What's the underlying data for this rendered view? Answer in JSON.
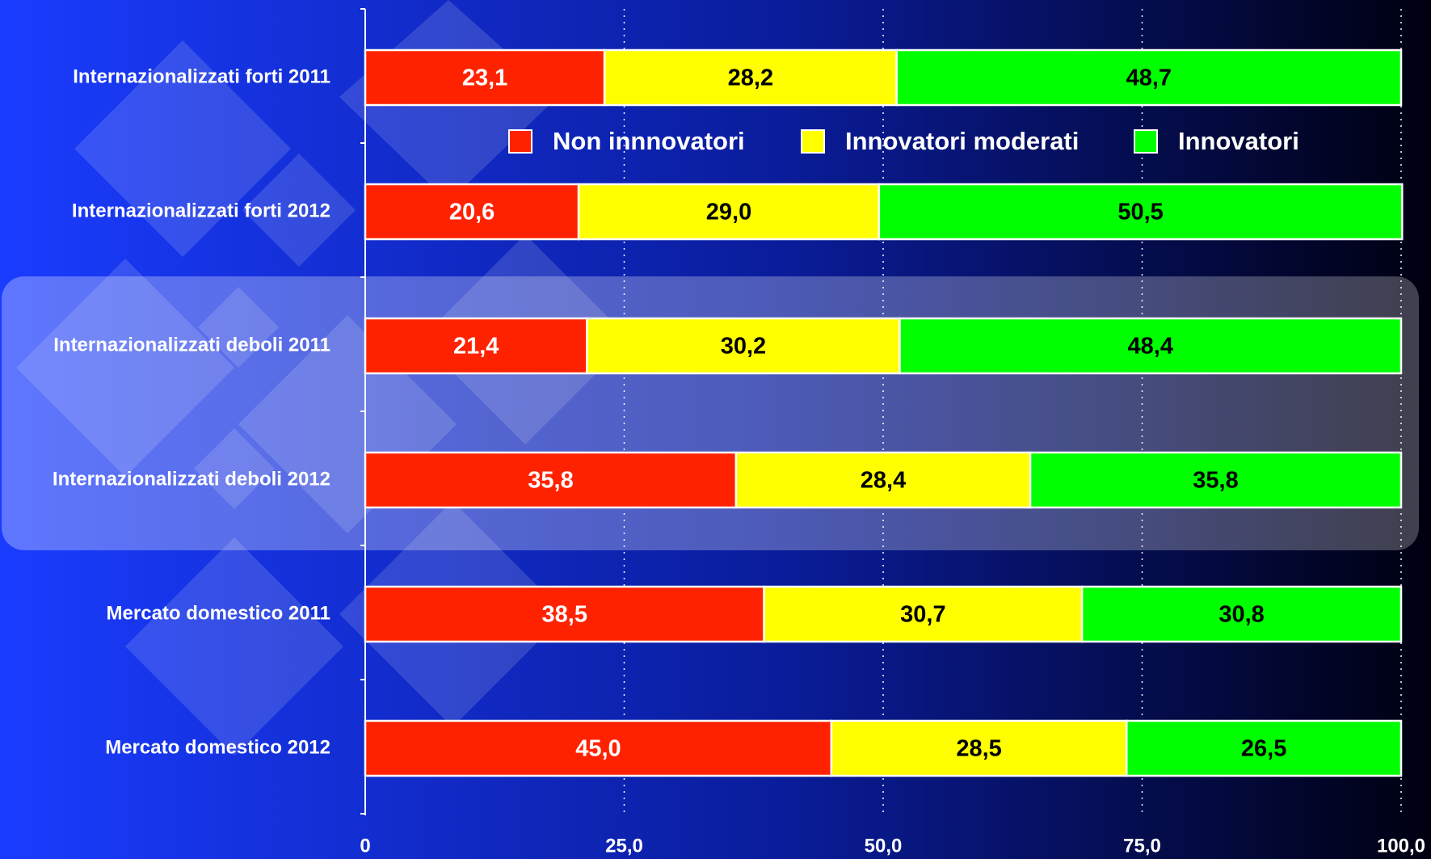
{
  "chart_data": {
    "type": "stacked-bar-horizontal",
    "categories": [
      "Internazionalizzati forti 2011",
      "Internazionalizzati forti 2012",
      "Internazionalizzati deboli 2011",
      "Internazionalizzati deboli 2012",
      "Mercato domestico 2011",
      "Mercato domestico 2012"
    ],
    "series": [
      {
        "name": "Non innnovatori",
        "color": "#ff2200",
        "values": [
          23.1,
          20.6,
          21.4,
          35.8,
          38.5,
          45.0
        ],
        "value_labels": [
          "23,1",
          "20,6",
          "21,4",
          "35,8",
          "38,5",
          "45,0"
        ]
      },
      {
        "name": "Innovatori moderati",
        "color": "#ffff00",
        "values": [
          28.2,
          29.0,
          30.2,
          28.4,
          30.7,
          28.5
        ],
        "value_labels": [
          "28,2",
          "29,0",
          "30,2",
          "28,4",
          "30,7",
          "28,5"
        ]
      },
      {
        "name": "Innovatori",
        "color": "#00ff00",
        "values": [
          48.7,
          50.5,
          48.4,
          35.8,
          30.8,
          26.5
        ],
        "value_labels": [
          "48,7",
          "50,5",
          "48,4",
          "35,8",
          "30,8",
          "26,5"
        ]
      }
    ],
    "xlim": [
      0,
      100
    ],
    "xticks": [
      0,
      {
        "value": 25,
        "label": "25,0"
      },
      {
        "value": 50,
        "label": "50,0"
      },
      {
        "value": 75,
        "label": "75,0"
      },
      {
        "value": 100,
        "label": "100,0"
      }
    ],
    "grid": true,
    "legend": "top"
  }
}
